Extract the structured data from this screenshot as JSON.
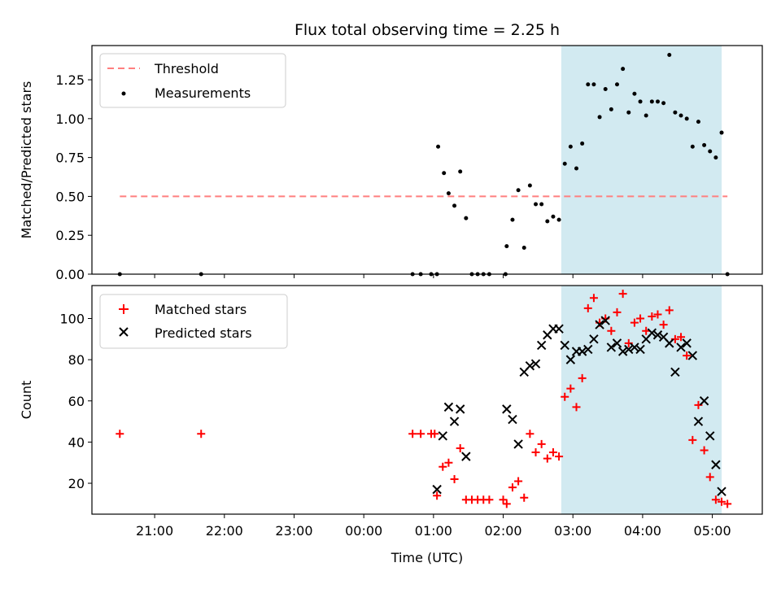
{
  "chart_data": {
    "title": "Flux total observing time = 2.25 h",
    "highlight_span": {
      "start": "02:50",
      "end": "05:08",
      "color": "#add8e6"
    },
    "panels": [
      {
        "type": "scatter",
        "ylabel": "Matched/Predicted stars",
        "ylim": [
          0,
          1.47
        ],
        "yticks": [
          "0.00",
          "0.25",
          "0.50",
          "0.75",
          "1.00",
          "1.25"
        ],
        "legend": {
          "placement": "top-left",
          "entries": [
            "Threshold",
            "Measurements"
          ]
        },
        "series": [
          {
            "name": "Threshold",
            "style": "dashed-line",
            "color": "#ff7f7f",
            "x": [
              "20:30",
              "05:13"
            ],
            "y": [
              0.5,
              0.5
            ]
          },
          {
            "name": "Measurements",
            "style": "dot",
            "color": "#000000",
            "x": [
              "20:30",
              "21:40",
              "00:42",
              "00:49",
              "00:58",
              "01:03",
              "01:04",
              "01:09",
              "01:13",
              "01:18",
              "01:23",
              "01:28",
              "01:33",
              "01:38",
              "01:43",
              "01:48",
              "02:02",
              "02:03",
              "02:08",
              "02:13",
              "02:18",
              "02:23",
              "02:28",
              "02:33",
              "02:38",
              "02:43",
              "02:48",
              "02:53",
              "02:58",
              "03:03",
              "03:08",
              "03:13",
              "03:18",
              "03:23",
              "03:28",
              "03:33",
              "03:38",
              "03:43",
              "03:48",
              "03:53",
              "03:58",
              "04:03",
              "04:08",
              "04:13",
              "04:18",
              "04:23",
              "04:28",
              "04:33",
              "04:38",
              "04:43",
              "04:48",
              "04:53",
              "04:58",
              "05:03",
              "05:08",
              "05:13"
            ],
            "y": [
              0.0,
              0.0,
              0.0,
              0.0,
              0.0,
              0.0,
              0.82,
              0.65,
              0.52,
              0.44,
              0.66,
              0.36,
              0.0,
              0.0,
              0.0,
              0.0,
              0.0,
              0.18,
              0.35,
              0.54,
              0.17,
              0.57,
              0.45,
              0.45,
              0.34,
              0.37,
              0.35,
              0.71,
              0.82,
              0.68,
              0.84,
              1.22,
              1.22,
              1.01,
              1.19,
              1.06,
              1.22,
              1.32,
              1.04,
              1.16,
              1.11,
              1.02,
              1.11,
              1.11,
              1.1,
              1.41,
              1.04,
              1.02,
              1.0,
              0.82,
              0.98,
              0.83,
              0.79,
              0.75,
              0.91,
              0.0
            ]
          }
        ]
      },
      {
        "type": "scatter",
        "ylabel": "Count",
        "ylim": [
          5,
          116
        ],
        "yticks": [
          "20",
          "40",
          "60",
          "80",
          "100"
        ],
        "legend": {
          "placement": "top-left",
          "entries": [
            "Matched stars",
            "Predicted stars"
          ]
        },
        "series": [
          {
            "name": "Matched stars",
            "style": "plus",
            "color": "#ff0000",
            "x": [
              "20:30",
              "21:40",
              "00:42",
              "00:49",
              "00:58",
              "01:01",
              "01:03",
              "01:08",
              "01:13",
              "01:18",
              "01:23",
              "01:28",
              "01:33",
              "01:38",
              "01:43",
              "01:48",
              "02:00",
              "02:03",
              "02:08",
              "02:13",
              "02:18",
              "02:23",
              "02:28",
              "02:33",
              "02:38",
              "02:43",
              "02:48",
              "02:53",
              "02:58",
              "03:03",
              "03:08",
              "03:13",
              "03:18",
              "03:23",
              "03:28",
              "03:33",
              "03:38",
              "03:43",
              "03:48",
              "03:53",
              "03:58",
              "04:03",
              "04:08",
              "04:13",
              "04:18",
              "04:23",
              "04:28",
              "04:33",
              "04:38",
              "04:43",
              "04:48",
              "04:53",
              "04:58",
              "05:03",
              "05:08",
              "05:13"
            ],
            "y": [
              44,
              44,
              44,
              44,
              44,
              44,
              14,
              28,
              30,
              22,
              37,
              12,
              12,
              12,
              12,
              12,
              12,
              10,
              18,
              21,
              13,
              44,
              35,
              39,
              32,
              35,
              33,
              62,
              66,
              57,
              71,
              105,
              110,
              98,
              100,
              94,
              103,
              112,
              88,
              98,
              100,
              94,
              101,
              102,
              97,
              104,
              90,
              91,
              82,
              41,
              58,
              36,
              23,
              12,
              11,
              10
            ]
          },
          {
            "name": "Predicted stars",
            "style": "cross",
            "color": "#000000",
            "x": [
              "01:03",
              "01:08",
              "01:13",
              "01:18",
              "01:23",
              "01:28",
              "02:03",
              "02:08",
              "02:13",
              "02:18",
              "02:23",
              "02:28",
              "02:33",
              "02:38",
              "02:43",
              "02:48",
              "02:53",
              "02:58",
              "03:03",
              "03:08",
              "03:13",
              "03:18",
              "03:23",
              "03:28",
              "03:33",
              "03:38",
              "03:43",
              "03:48",
              "03:53",
              "03:58",
              "04:03",
              "04:08",
              "04:13",
              "04:18",
              "04:23",
              "04:28",
              "04:33",
              "04:38",
              "04:43",
              "04:48",
              "04:53",
              "04:58",
              "05:03",
              "05:08"
            ],
            "y": [
              17,
              43,
              57,
              50,
              56,
              33,
              56,
              51,
              39,
              74,
              77,
              78,
              87,
              92,
              95,
              95,
              87,
              80,
              84,
              84,
              85,
              90,
              97,
              99,
              86,
              88,
              84,
              85,
              86,
              85,
              90,
              93,
              92,
              91,
              88,
              74,
              86,
              88,
              82,
              50,
              60,
              43,
              29,
              16
            ]
          }
        ]
      }
    ],
    "x_axis": {
      "label": "Time (UTC)",
      "tick_labels": [
        "21:00",
        "22:00",
        "23:00",
        "00:00",
        "01:00",
        "02:00",
        "03:00",
        "04:00",
        "05:00"
      ]
    }
  }
}
